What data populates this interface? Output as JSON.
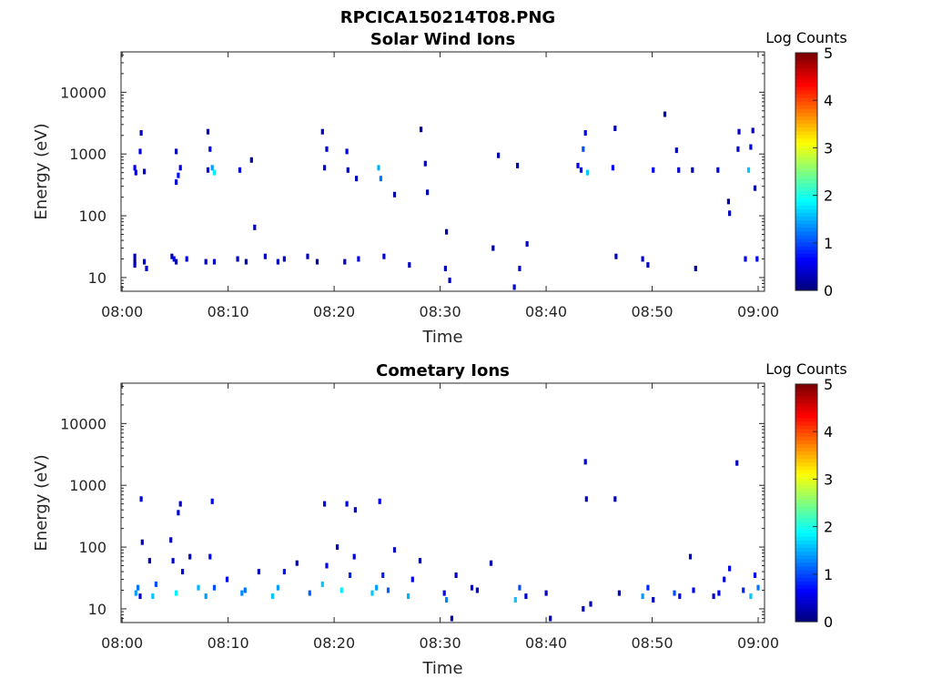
{
  "figure_title": "RPCICA150214T08.PNG",
  "chart_data": [
    {
      "type": "heatmap",
      "title": "Solar Wind Ions",
      "xlabel": "Time",
      "ylabel": "Energy (eV)",
      "x_tick_labels": [
        "08:00",
        "08:10",
        "08:20",
        "08:30",
        "08:40",
        "08:50",
        "09:00"
      ],
      "x_tick_minutes": [
        0,
        10,
        20,
        30,
        40,
        50,
        60
      ],
      "xlim_minutes": [
        -0.1,
        60.6
      ],
      "y_tick_labels": [
        "10",
        "100",
        "1000",
        "10000"
      ],
      "y_tick_values": [
        10,
        100,
        1000,
        10000
      ],
      "y_scale": "log",
      "ylim": [
        6,
        45000
      ],
      "colorbar": {
        "label": "Log Counts",
        "ticks": [
          "0",
          "1",
          "2",
          "3",
          "4",
          "5"
        ],
        "range": [
          0,
          5
        ],
        "colormap": "jet"
      },
      "cells": [
        [
          1.2,
          22,
          0.3
        ],
        [
          1.2,
          18,
          0.1
        ],
        [
          1.2,
          16,
          0.3
        ],
        [
          1.2,
          600,
          0.6
        ],
        [
          1.3,
          500,
          0.4
        ],
        [
          1.7,
          1100,
          0.5
        ],
        [
          1.8,
          2200,
          0.3
        ],
        [
          2.1,
          520,
          0.4
        ],
        [
          2.1,
          18,
          0.5
        ],
        [
          2.3,
          14,
          0.4
        ],
        [
          4.7,
          22,
          0.3
        ],
        [
          4.9,
          20,
          0.5
        ],
        [
          5.1,
          18,
          0.2
        ],
        [
          5.1,
          350,
          0.4
        ],
        [
          5.1,
          1100,
          0.3
        ],
        [
          5.3,
          450,
          0.7
        ],
        [
          5.5,
          600,
          0.5
        ],
        [
          6.1,
          20,
          0.4
        ],
        [
          7.9,
          18,
          0.4
        ],
        [
          8.1,
          550,
          0.6
        ],
        [
          8.1,
          2300,
          0.3
        ],
        [
          8.3,
          1200,
          0.5
        ],
        [
          8.5,
          600,
          1.4
        ],
        [
          8.7,
          500,
          1.8
        ],
        [
          8.7,
          18,
          0.3
        ],
        [
          10.9,
          20,
          0.3
        ],
        [
          11.1,
          550,
          0.4
        ],
        [
          11.7,
          18,
          0.2
        ],
        [
          12.2,
          800,
          0.2
        ],
        [
          12.5,
          65,
          0.2
        ],
        [
          13.5,
          22,
          0.3
        ],
        [
          14.7,
          18,
          0.3
        ],
        [
          15.3,
          20,
          0.4
        ],
        [
          17.5,
          22,
          0.3
        ],
        [
          18.4,
          18,
          0.2
        ],
        [
          18.9,
          2300,
          0.3
        ],
        [
          19.1,
          600,
          0.5
        ],
        [
          19.3,
          1200,
          0.4
        ],
        [
          21.0,
          18,
          0.3
        ],
        [
          21.2,
          1100,
          0.5
        ],
        [
          21.3,
          550,
          0.4
        ],
        [
          22.1,
          400,
          0.3
        ],
        [
          22.3,
          20,
          0.5
        ],
        [
          24.2,
          600,
          1.5
        ],
        [
          24.4,
          400,
          1.2
        ],
        [
          24.7,
          22,
          0.4
        ],
        [
          25.7,
          220,
          0.2
        ],
        [
          27.1,
          16,
          0.3
        ],
        [
          28.2,
          2500,
          0.2
        ],
        [
          28.6,
          700,
          0.2
        ],
        [
          28.8,
          240,
          0.2
        ],
        [
          30.5,
          14,
          0.3
        ],
        [
          30.6,
          55,
          0.2
        ],
        [
          30.9,
          9,
          0.3
        ],
        [
          35.5,
          950,
          0.2
        ],
        [
          35.0,
          30,
          0.2
        ],
        [
          37.0,
          7,
          0.3
        ],
        [
          37.3,
          650,
          0.3
        ],
        [
          37.5,
          14,
          0.4
        ],
        [
          38.2,
          35,
          0.3
        ],
        [
          43.0,
          650,
          0.5
        ],
        [
          43.3,
          550,
          0.7
        ],
        [
          43.5,
          1200,
          1.0
        ],
        [
          43.7,
          2200,
          0.4
        ],
        [
          43.9,
          500,
          1.6
        ],
        [
          46.3,
          600,
          0.6
        ],
        [
          46.5,
          2600,
          0.2
        ],
        [
          46.6,
          22,
          0.3
        ],
        [
          49.1,
          20,
          0.4
        ],
        [
          49.6,
          16,
          0.3
        ],
        [
          50.1,
          550,
          0.6
        ],
        [
          51.2,
          4400,
          0.2
        ],
        [
          52.3,
          1150,
          0.3
        ],
        [
          52.5,
          550,
          0.4
        ],
        [
          53.8,
          550,
          0.3
        ],
        [
          54.1,
          14,
          0.2
        ],
        [
          56.2,
          550,
          0.5
        ],
        [
          57.2,
          170,
          0.2
        ],
        [
          57.3,
          110,
          0.3
        ],
        [
          58.1,
          1200,
          0.4
        ],
        [
          58.2,
          2300,
          0.3
        ],
        [
          58.8,
          20,
          0.5
        ],
        [
          59.1,
          550,
          1.6
        ],
        [
          59.3,
          1300,
          0.5
        ],
        [
          59.5,
          2400,
          0.3
        ],
        [
          59.7,
          280,
          0.2
        ],
        [
          59.9,
          20,
          0.6
        ]
      ]
    },
    {
      "type": "heatmap",
      "title": "Cometary Ions",
      "xlabel": "Time",
      "ylabel": "Energy (eV)",
      "x_tick_labels": [
        "08:00",
        "08:10",
        "08:20",
        "08:30",
        "08:40",
        "08:50",
        "09:00"
      ],
      "x_tick_minutes": [
        0,
        10,
        20,
        30,
        40,
        50,
        60
      ],
      "xlim_minutes": [
        -0.1,
        60.6
      ],
      "y_tick_labels": [
        "10",
        "100",
        "1000",
        "10000"
      ],
      "y_tick_values": [
        10,
        100,
        1000,
        10000
      ],
      "y_scale": "log",
      "ylim": [
        6,
        45000
      ],
      "colorbar": {
        "label": "Log Counts",
        "ticks": [
          "0",
          "1",
          "2",
          "3",
          "4",
          "5"
        ],
        "range": [
          0,
          5
        ],
        "colormap": "jet"
      },
      "cells": [
        [
          1.3,
          18,
          1.4
        ],
        [
          1.5,
          22,
          1.2
        ],
        [
          1.7,
          16,
          0.4
        ],
        [
          1.8,
          600,
          0.4
        ],
        [
          1.9,
          120,
          0.3
        ],
        [
          2.6,
          60,
          0.3
        ],
        [
          2.9,
          16,
          1.6
        ],
        [
          3.2,
          25,
          1.0
        ],
        [
          4.6,
          130,
          0.3
        ],
        [
          4.8,
          60,
          0.4
        ],
        [
          5.1,
          18,
          1.8
        ],
        [
          5.3,
          360,
          0.4
        ],
        [
          5.5,
          500,
          0.4
        ],
        [
          5.7,
          40,
          0.5
        ],
        [
          6.4,
          70,
          0.3
        ],
        [
          7.2,
          22,
          1.5
        ],
        [
          7.9,
          16,
          1.4
        ],
        [
          8.3,
          70,
          0.6
        ],
        [
          8.5,
          550,
          0.5
        ],
        [
          8.7,
          22,
          1.0
        ],
        [
          9.9,
          30,
          0.6
        ],
        [
          11.3,
          18,
          1.3
        ],
        [
          11.6,
          20,
          1.2
        ],
        [
          12.9,
          40,
          0.6
        ],
        [
          14.2,
          16,
          1.6
        ],
        [
          14.7,
          22,
          1.4
        ],
        [
          15.3,
          40,
          0.7
        ],
        [
          16.5,
          55,
          0.3
        ],
        [
          17.7,
          18,
          1.1
        ],
        [
          18.9,
          25,
          1.6
        ],
        [
          19.1,
          500,
          0.5
        ],
        [
          19.3,
          50,
          0.5
        ],
        [
          20.3,
          100,
          0.3
        ],
        [
          20.7,
          20,
          1.8
        ],
        [
          21.2,
          500,
          0.5
        ],
        [
          21.5,
          35,
          0.8
        ],
        [
          21.9,
          70,
          0.4
        ],
        [
          22.0,
          400,
          0.4
        ],
        [
          23.6,
          18,
          1.6
        ],
        [
          24.0,
          22,
          1.4
        ],
        [
          24.3,
          550,
          0.6
        ],
        [
          24.6,
          35,
          0.8
        ],
        [
          25.1,
          20,
          1.1
        ],
        [
          25.7,
          90,
          0.3
        ],
        [
          27.0,
          16,
          1.5
        ],
        [
          27.4,
          30,
          0.5
        ],
        [
          28.1,
          60,
          0.2
        ],
        [
          30.4,
          18,
          0.5
        ],
        [
          30.6,
          14,
          1.3
        ],
        [
          31.1,
          7,
          0.3
        ],
        [
          31.5,
          35,
          0.3
        ],
        [
          33.0,
          22,
          0.6
        ],
        [
          33.5,
          20,
          0.4
        ],
        [
          34.8,
          55,
          0.2
        ],
        [
          37.1,
          14,
          1.6
        ],
        [
          37.5,
          22,
          1.0
        ],
        [
          38.1,
          16,
          0.4
        ],
        [
          40.0,
          18,
          0.3
        ],
        [
          40.4,
          7,
          0.3
        ],
        [
          43.5,
          10,
          0.4
        ],
        [
          43.7,
          2400,
          0.3
        ],
        [
          43.8,
          600,
          0.3
        ],
        [
          44.2,
          12,
          0.3
        ],
        [
          46.5,
          600,
          0.2
        ],
        [
          46.9,
          18,
          0.3
        ],
        [
          49.1,
          16,
          1.4
        ],
        [
          49.6,
          22,
          0.8
        ],
        [
          50.1,
          14,
          0.3
        ],
        [
          52.1,
          18,
          1.0
        ],
        [
          52.6,
          16,
          0.6
        ],
        [
          53.6,
          70,
          0.3
        ],
        [
          53.9,
          20,
          0.5
        ],
        [
          55.8,
          16,
          0.4
        ],
        [
          56.3,
          18,
          0.5
        ],
        [
          56.8,
          30,
          0.4
        ],
        [
          57.3,
          45,
          0.5
        ],
        [
          58.0,
          2300,
          0.3
        ],
        [
          58.6,
          20,
          0.8
        ],
        [
          59.3,
          16,
          1.6
        ],
        [
          59.7,
          35,
          0.6
        ],
        [
          60.0,
          22,
          1.2
        ]
      ]
    }
  ]
}
